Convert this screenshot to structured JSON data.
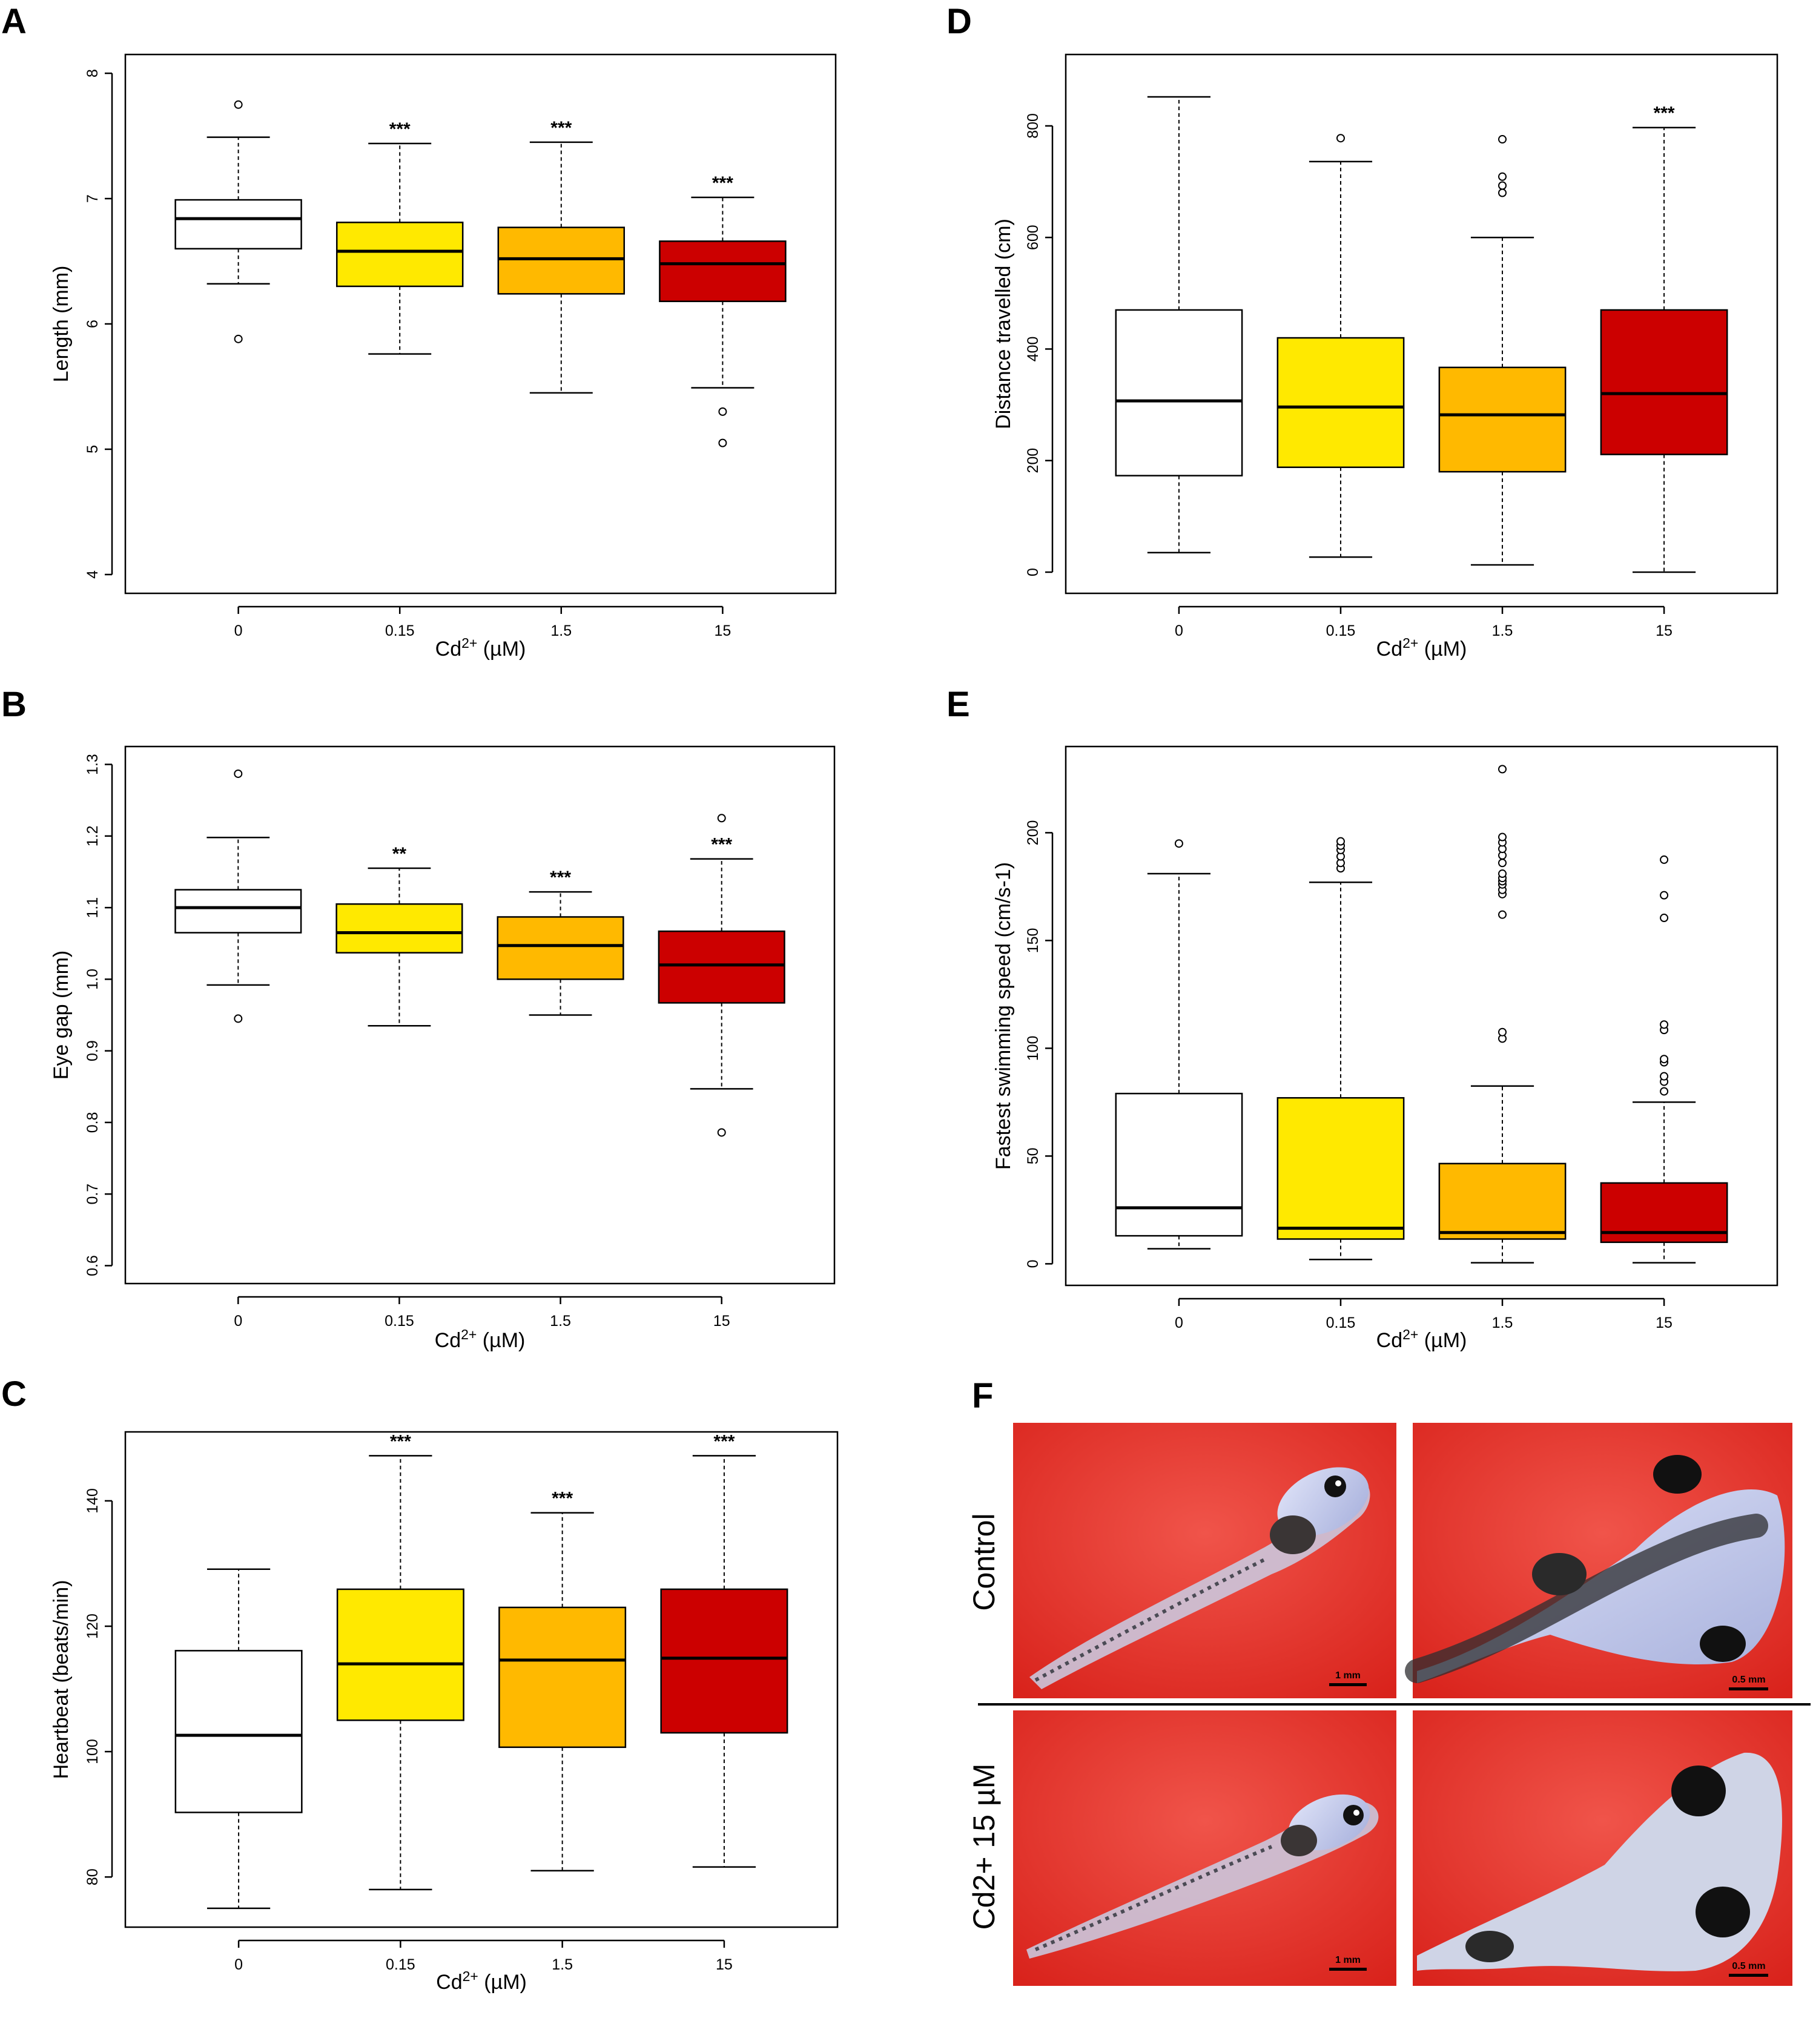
{
  "colors": {
    "c0": "#ffffff",
    "c015": "#ffe900",
    "c15": "#ffb900",
    "c150": "#cc0000"
  },
  "chart_data": [
    {
      "panel": "A",
      "type": "box",
      "categories": [
        "0",
        "0.15",
        "1.5",
        "15"
      ],
      "xlabel": "Cd2+ (µM)",
      "ylabel": "Length (mm)",
      "ylim": [
        3.85,
        8.15
      ],
      "yticks": [
        "4",
        "5",
        "6",
        "7",
        "8"
      ],
      "boxes": [
        {
          "q1": 6.6,
          "median": 6.84,
          "q3": 6.99,
          "whisker_low": 6.32,
          "whisker_high": 7.49,
          "outliers": [
            5.88,
            7.75
          ],
          "sig": ""
        },
        {
          "q1": 6.3,
          "median": 6.58,
          "q3": 6.81,
          "whisker_low": 5.76,
          "whisker_high": 7.44,
          "outliers": [],
          "sig": "***"
        },
        {
          "q1": 6.24,
          "median": 6.52,
          "q3": 6.77,
          "whisker_low": 5.45,
          "whisker_high": 7.45,
          "outliers": [],
          "sig": "***"
        },
        {
          "q1": 6.18,
          "median": 6.48,
          "q3": 6.66,
          "whisker_low": 5.49,
          "whisker_high": 7.01,
          "outliers": [
            5.3,
            5.05
          ],
          "sig": "***"
        }
      ]
    },
    {
      "panel": "B",
      "type": "box",
      "categories": [
        "0",
        "0.15",
        "1.5",
        "15"
      ],
      "xlabel": "Cd2+ (µM)",
      "ylabel": "Eye gap (mm)",
      "ylim": [
        0.575,
        1.325
      ],
      "yticks": [
        "0.6",
        "0.7",
        "0.8",
        "0.9",
        "1.0",
        "1.1",
        "1.2",
        "1.3"
      ],
      "boxes": [
        {
          "q1": 1.065,
          "median": 1.1,
          "q3": 1.125,
          "whisker_low": 0.992,
          "whisker_high": 1.198,
          "outliers": [
            0.945,
            1.287
          ],
          "sig": ""
        },
        {
          "q1": 1.037,
          "median": 1.065,
          "q3": 1.105,
          "whisker_low": 0.935,
          "whisker_high": 1.155,
          "outliers": [],
          "sig": "**"
        },
        {
          "q1": 1.0,
          "median": 1.047,
          "q3": 1.087,
          "whisker_low": 0.95,
          "whisker_high": 1.122,
          "outliers": [],
          "sig": "***"
        },
        {
          "q1": 0.967,
          "median": 1.02,
          "q3": 1.067,
          "whisker_low": 0.847,
          "whisker_high": 1.168,
          "outliers": [
            0.786,
            1.225
          ],
          "sig": "***"
        }
      ]
    },
    {
      "panel": "C",
      "type": "box",
      "categories": [
        "0",
        "0.15",
        "1.5",
        "15"
      ],
      "xlabel": "Cd2+ (µM)",
      "ylabel": "Heartbeat (beats/min)",
      "ylim": [
        72,
        151
      ],
      "yticks": [
        "80",
        "100",
        "120",
        "140"
      ],
      "boxes": [
        {
          "q1": 90.3,
          "median": 102.6,
          "q3": 116.1,
          "whisker_low": 75.0,
          "whisker_high": 129.1,
          "outliers": [],
          "sig": ""
        },
        {
          "q1": 105.0,
          "median": 114.0,
          "q3": 125.9,
          "whisker_low": 78.0,
          "whisker_high": 147.2,
          "outliers": [],
          "sig": "***"
        },
        {
          "q1": 100.7,
          "median": 114.6,
          "q3": 123.0,
          "whisker_low": 81.0,
          "whisker_high": 138.1,
          "outliers": [],
          "sig": "***"
        },
        {
          "q1": 103.0,
          "median": 114.9,
          "q3": 125.9,
          "whisker_low": 81.6,
          "whisker_high": 147.2,
          "outliers": [],
          "sig": "***"
        }
      ]
    },
    {
      "panel": "D",
      "type": "box",
      "categories": [
        "0",
        "0.15",
        "1.5",
        "15"
      ],
      "xlabel": "Cd2+ (µM)",
      "ylabel": "Distance travelled (cm)",
      "ylim": [
        -38,
        928
      ],
      "yticks": [
        "0",
        "200",
        "400",
        "600",
        "800"
      ],
      "boxes": [
        {
          "q1": 173,
          "median": 307,
          "q3": 470,
          "whisker_low": 35,
          "whisker_high": 852,
          "outliers": [],
          "sig": ""
        },
        {
          "q1": 188,
          "median": 296,
          "q3": 420,
          "whisker_low": 27,
          "whisker_high": 736,
          "outliers": [
            778
          ],
          "sig": ""
        },
        {
          "q1": 180,
          "median": 282,
          "q3": 367,
          "whisker_low": 13,
          "whisker_high": 600,
          "outliers": [
            680,
            693,
            709,
            776
          ],
          "sig": ""
        },
        {
          "q1": 211,
          "median": 320,
          "q3": 470,
          "whisker_low": 0,
          "whisker_high": 797,
          "outliers": [],
          "sig": "***"
        }
      ]
    },
    {
      "panel": "E",
      "type": "box",
      "categories": [
        "0",
        "0.15",
        "1.5",
        "15"
      ],
      "xlabel": "Cd2+ (µM)",
      "ylabel": "Fastest swimming speed (cm/s-1)",
      "ylim": [
        -10,
        240
      ],
      "yticks": [
        "0",
        "50",
        "100",
        "150",
        "200"
      ],
      "boxes": [
        {
          "q1": 13.0,
          "median": 26.0,
          "q3": 79.0,
          "whisker_low": 7.0,
          "whisker_high": 181.0,
          "outliers": [
            195.0
          ],
          "sig": ""
        },
        {
          "q1": 11.5,
          "median": 16.5,
          "q3": 77.0,
          "whisker_low": 2.0,
          "whisker_high": 177.0,
          "outliers": [
            183.5,
            186.0,
            189.0,
            192.0,
            194.0,
            196.0
          ],
          "sig": ""
        },
        {
          "q1": 11.5,
          "median": 14.5,
          "q3": 46.5,
          "whisker_low": 0.5,
          "whisker_high": 82.5,
          "outliers": [
            104.5,
            107.5,
            162.0,
            171.5,
            173.5,
            176.0,
            177.5,
            179.0,
            181.0,
            186.0,
            189.5,
            192.5,
            195.5,
            198.0,
            229.5
          ],
          "sig": ""
        },
        {
          "q1": 10.0,
          "median": 14.5,
          "q3": 37.5,
          "whisker_low": 0.5,
          "whisker_high": 75.0,
          "outliers": [
            80.0,
            84.5,
            87.0,
            93.5,
            95.0,
            108.5,
            111.0,
            160.5,
            171.0,
            187.5
          ],
          "sig": ""
        }
      ]
    }
  ],
  "panel_f": {
    "label": "F",
    "rows": [
      "Control",
      "Cd2+ 15 µM"
    ],
    "scale_bars": [
      "1 mm",
      "0.5 mm",
      "1 mm",
      "0.5 mm"
    ]
  }
}
